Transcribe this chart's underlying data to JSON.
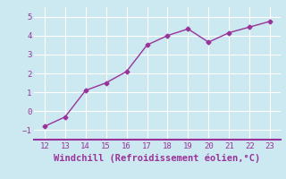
{
  "x": [
    12,
    13,
    14,
    15,
    16,
    17,
    18,
    19,
    20,
    21,
    22,
    23
  ],
  "y": [
    -0.8,
    -0.3,
    1.1,
    1.5,
    2.1,
    3.5,
    4.0,
    4.35,
    3.65,
    4.15,
    4.45,
    4.75
  ],
  "xlim": [
    11.5,
    23.5
  ],
  "ylim": [
    -1.5,
    5.5
  ],
  "xticks": [
    12,
    13,
    14,
    15,
    16,
    17,
    18,
    19,
    20,
    21,
    22,
    23
  ],
  "yticks": [
    -1,
    0,
    1,
    2,
    3,
    4,
    5
  ],
  "xlabel": "Windchill (Refroidissement éolien,°C)",
  "line_color": "#993399",
  "marker_color": "#993399",
  "bg_color": "#cce8f0",
  "plot_bg_color": "#cce8f0",
  "grid_color": "#ffffff",
  "tick_label_color": "#993399",
  "xlabel_color": "#993399",
  "border_color": "#993399",
  "marker": "D",
  "markersize": 2.5,
  "linewidth": 1.0,
  "tick_fontsize": 6.5,
  "xlabel_fontsize": 7.5
}
